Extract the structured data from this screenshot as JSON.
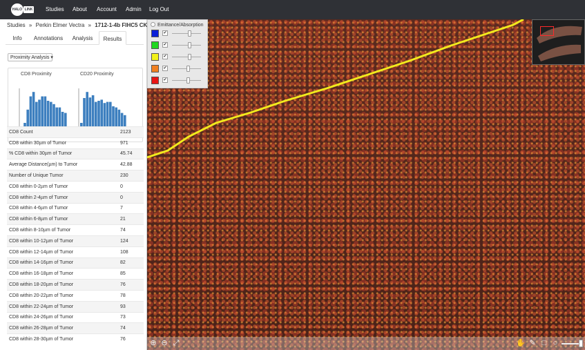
{
  "nav": {
    "logo_text": "HALO",
    "logo_badge": "LINK",
    "items": [
      "Studies",
      "About",
      "Account",
      "Admin",
      "Log Out"
    ]
  },
  "breadcrumb": {
    "items": [
      "Studies",
      "Perkin Elmer Vectra",
      "1712-1-4b FIHC5 CK-co..."
    ],
    "separator": "»"
  },
  "tabs": [
    "Info",
    "Annotations",
    "Analysis",
    "Results"
  ],
  "active_tab": "Results",
  "analysis_select": {
    "value": "Proximity Analysis ▾"
  },
  "charts": [
    {
      "title": "CD8 Proximity",
      "values": [
        2,
        10,
        34,
        58,
        66,
        48,
        52,
        58,
        58,
        50,
        48,
        44,
        38,
        38,
        30,
        28
      ]
    },
    {
      "title": "CD20 Proximity",
      "values": [
        10,
        55,
        66,
        56,
        60,
        48,
        50,
        52,
        46,
        48,
        48,
        40,
        38,
        34,
        28,
        24
      ]
    }
  ],
  "stats": [
    {
      "label": "CD8 Count",
      "value": "2123"
    },
    {
      "label": "CD8 within 30µm of Tumor",
      "value": "971"
    },
    {
      "label": "% CD8 within 30µm of Tumor",
      "value": "45.74"
    },
    {
      "label": "Average Distance(µm) to Tumor",
      "value": "42.88"
    },
    {
      "label": "Number of Unique Tumor",
      "value": "230"
    },
    {
      "label": "CD8 within 0-2µm of Tumor",
      "value": "0"
    },
    {
      "label": "CD8 within 2-4µm of Tumor",
      "value": "0"
    },
    {
      "label": "CD8 within 4-6µm of Tumor",
      "value": "7"
    },
    {
      "label": "CD8 within 6-8µm of Tumor",
      "value": "21"
    },
    {
      "label": "CD8 within 8-10µm of Tumor",
      "value": "74"
    },
    {
      "label": "CD8 within 10-12µm of Tumor",
      "value": "124"
    },
    {
      "label": "CD8 within 12-14µm of Tumor",
      "value": "108"
    },
    {
      "label": "CD8 within 14-16µm of Tumor",
      "value": "82"
    },
    {
      "label": "CD8 within 16-18µm of Tumor",
      "value": "85"
    },
    {
      "label": "CD8 within 18-20µm of Tumor",
      "value": "76"
    },
    {
      "label": "CD8 within 20-22µm of Tumor",
      "value": "78"
    },
    {
      "label": "CD8 within 22-24µm of Tumor",
      "value": "93"
    },
    {
      "label": "CD8 within 24-26µm of Tumor",
      "value": "73"
    },
    {
      "label": "CD8 within 26-28µm of Tumor",
      "value": "74"
    },
    {
      "label": "CD8 within 28-30µm of Tumor",
      "value": "76"
    }
  ],
  "viewer": {
    "legend_title": "Emittance/Absorption",
    "channels": [
      {
        "color": "#0a1fd8",
        "checked": "✔",
        "level": 0.6
      },
      {
        "color": "#1fd81f",
        "checked": "✔",
        "level": 0.6
      },
      {
        "color": "#f2f21a",
        "checked": "✔",
        "level": 0.6
      },
      {
        "color": "#f08020",
        "checked": "✔",
        "level": 0.55
      },
      {
        "color": "#e81414",
        "checked": "✔",
        "level": 0.55
      }
    ],
    "annotation_color": "#f2ea1d",
    "tools": [
      "zoom-in-icon",
      "zoom-out-icon",
      "fit-icon",
      "hand-icon",
      "pen-icon",
      "rectangle-icon",
      "circle-icon"
    ]
  }
}
